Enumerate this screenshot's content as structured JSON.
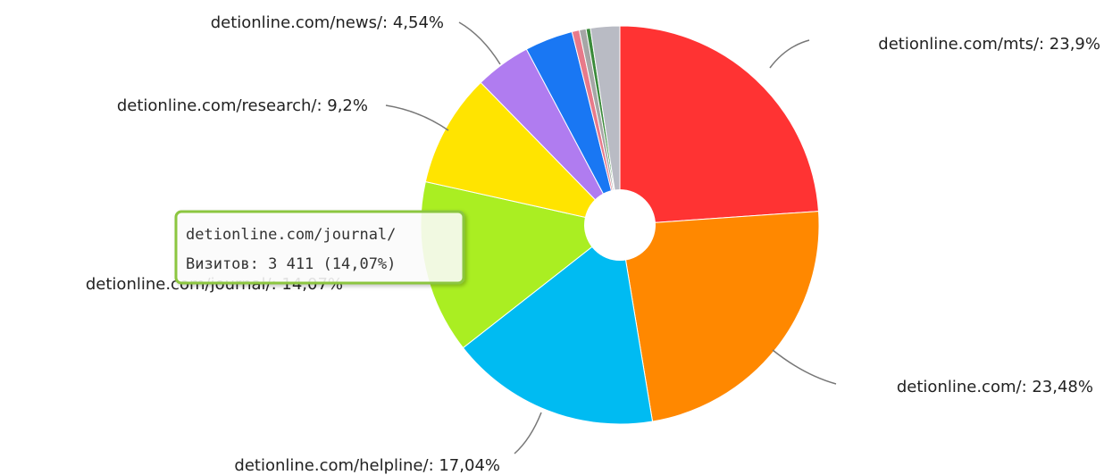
{
  "chart_data": {
    "type": "pie",
    "title": "",
    "series": [
      {
        "name": "detionline.com/mts/",
        "value": 23.9,
        "label": "detionline.com/mts/: 23,9%",
        "color": "#FF3333"
      },
      {
        "name": "detionline.com/",
        "value": 23.48,
        "label": "detionline.com/: 23,48%",
        "color": "#FF8800"
      },
      {
        "name": "detionline.com/helpline/",
        "value": 17.04,
        "label": "detionline.com/helpline/: 17,04%",
        "color": "#00BBF2"
      },
      {
        "name": "detionline.com/journal/",
        "value": 14.07,
        "label": "detionline.com/journal/: 14,07%",
        "color": "#AAEE22"
      },
      {
        "name": "detionline.com/research/",
        "value": 9.2,
        "label": "detionline.com/research/: 9,2%",
        "color": "#FFE400"
      },
      {
        "name": "detionline.com/news/",
        "value": 4.54,
        "label": "detionline.com/news/: 4,54%",
        "color": "#B07CF0"
      },
      {
        "name": "",
        "value": 3.9,
        "label": "",
        "color": "#1977F3"
      },
      {
        "name": "",
        "value": 0.6,
        "label": "",
        "color": "#E87A8A"
      },
      {
        "name": "",
        "value": 0.55,
        "label": "",
        "color": "#A6A6A6"
      },
      {
        "name": "",
        "value": 0.35,
        "label": "",
        "color": "#3A8A3A"
      },
      {
        "name": "",
        "value": 2.37,
        "label": "",
        "color": "#B9BBC4"
      }
    ],
    "tooltip": {
      "line1": "detionline.com/journal/",
      "line2": "Визитов: 3 411 (14,07%)",
      "border_color": "#8CC63F"
    }
  }
}
